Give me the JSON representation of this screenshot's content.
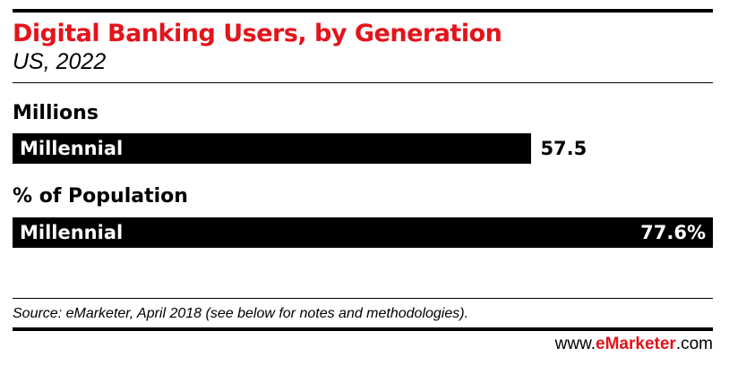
{
  "chart_data": [
    {
      "type": "bar",
      "orientation": "horizontal",
      "section_label": "Millions",
      "categories": [
        "Millennial"
      ],
      "values": [
        57.5
      ],
      "value_labels": [
        "57.5"
      ],
      "xlim": [
        0,
        77.6
      ]
    },
    {
      "type": "bar",
      "orientation": "horizontal",
      "section_label": "% of Population",
      "categories": [
        "Millennial"
      ],
      "values": [
        77.6
      ],
      "value_labels": [
        "77.6%"
      ],
      "xlim": [
        0,
        77.6
      ]
    }
  ],
  "header": {
    "title": "Digital Banking Users, by Generation",
    "subtitle": "US, 2022"
  },
  "footer": {
    "source": "Source: eMarketer, April 2018 (see below for notes and methodologies).",
    "site_prefix": "www.",
    "site_brand": "eMarketer",
    "site_suffix": ".com"
  },
  "colors": {
    "title": "#e3141b",
    "bar": "#000000",
    "brand": "#e3141b"
  }
}
